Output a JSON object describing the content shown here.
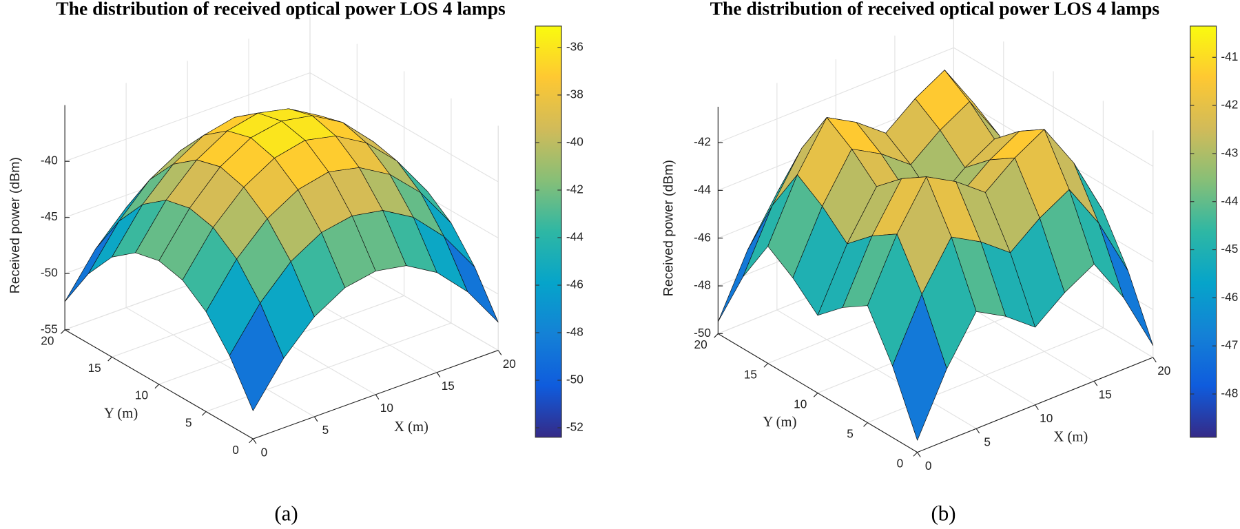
{
  "chart_data": [
    {
      "type": "surface",
      "title": "The distribution of received optical power LOS 4 lamps",
      "caption": "(a)",
      "xlabel": "X (m)",
      "ylabel": "Y (m)",
      "zlabel": "Received power (dBm)",
      "x": [
        0,
        2.5,
        5,
        7.5,
        10,
        12.5,
        15,
        17.5,
        20
      ],
      "y": [
        0,
        2.5,
        5,
        7.5,
        10,
        12.5,
        15,
        17.5,
        20
      ],
      "z": [
        [
          -52.5,
          -48.8,
          -46.1,
          -44.5,
          -44.0,
          -44.5,
          -46.1,
          -48.8,
          -52.5
        ],
        [
          -48.8,
          -45.1,
          -42.4,
          -40.8,
          -40.3,
          -40.8,
          -42.4,
          -45.1,
          -48.8
        ],
        [
          -46.1,
          -42.4,
          -39.8,
          -38.2,
          -37.6,
          -38.2,
          -39.8,
          -42.4,
          -46.1
        ],
        [
          -44.5,
          -40.8,
          -38.2,
          -36.6,
          -36.0,
          -36.6,
          -38.2,
          -40.8,
          -44.5
        ],
        [
          -44.0,
          -40.3,
          -37.6,
          -36.0,
          -35.5,
          -36.0,
          -37.6,
          -40.3,
          -44.0
        ],
        [
          -44.5,
          -40.8,
          -38.2,
          -36.6,
          -36.0,
          -36.6,
          -38.2,
          -40.8,
          -44.5
        ],
        [
          -46.1,
          -42.4,
          -39.8,
          -38.2,
          -37.6,
          -38.2,
          -39.8,
          -42.4,
          -46.1
        ],
        [
          -48.8,
          -45.1,
          -42.4,
          -40.8,
          -40.3,
          -40.8,
          -42.4,
          -45.1,
          -48.8
        ],
        [
          -52.5,
          -48.8,
          -46.1,
          -44.5,
          -44.0,
          -44.5,
          -46.1,
          -48.8,
          -52.5
        ]
      ],
      "xlim": [
        0,
        20
      ],
      "ylim": [
        0,
        20
      ],
      "zlim": [
        -55,
        -35
      ],
      "xticks": [
        0,
        5,
        10,
        15,
        20
      ],
      "yticks": [
        0,
        5,
        10,
        15,
        20
      ],
      "zticks": [
        -55,
        -50,
        -45,
        -40
      ],
      "grid": true,
      "colormap": [
        "#352a87",
        "#0f5cdd",
        "#1481d6",
        "#06a4ca",
        "#2eb7a4",
        "#87bf77",
        "#d1bb59",
        "#fec832",
        "#f9fb0e"
      ],
      "colorbar": {
        "clim": [
          -52.4,
          -35.1
        ],
        "ticks": [
          -52,
          -50,
          -48,
          -46,
          -44,
          -42,
          -40,
          -38,
          -36
        ]
      }
    },
    {
      "type": "surface",
      "title": "The distribution of received optical power LOS 4 lamps",
      "caption": "(b)",
      "xlabel": "X (m)",
      "ylabel": "Y (m)",
      "zlabel": "Received power (dBm)",
      "x": [
        0,
        2.5,
        5,
        7.5,
        10,
        12.5,
        15,
        17.5,
        20
      ],
      "y": [
        0,
        2.5,
        5,
        7.5,
        10,
        12.5,
        15,
        17.5,
        20
      ],
      "z": [
        [
          -49.5,
          -47.0,
          -45.1,
          -45.8,
          -46.75,
          -45.8,
          -45.1,
          -47.0,
          -49.5
        ],
        [
          -47.0,
          -44.5,
          -42.6,
          -43.3,
          -44.25,
          -43.3,
          -42.6,
          -44.5,
          -47.0
        ],
        [
          -45.1,
          -42.6,
          -40.7,
          -41.4,
          -42.35,
          -41.4,
          -40.7,
          -42.6,
          -45.1
        ],
        [
          -45.8,
          -43.3,
          -41.4,
          -42.1,
          -43.05,
          -42.1,
          -41.4,
          -43.3,
          -45.8
        ],
        [
          -46.75,
          -44.25,
          -42.35,
          -43.05,
          -44.0,
          -43.05,
          -42.35,
          -44.25,
          -46.75
        ],
        [
          -45.8,
          -43.3,
          -41.4,
          -42.1,
          -43.05,
          -42.1,
          -41.4,
          -43.3,
          -45.8
        ],
        [
          -45.1,
          -42.6,
          -40.7,
          -41.4,
          -42.35,
          -41.4,
          -40.7,
          -42.6,
          -45.1
        ],
        [
          -47.0,
          -44.5,
          -42.6,
          -43.3,
          -44.25,
          -43.3,
          -42.6,
          -44.5,
          -47.0
        ],
        [
          -49.5,
          -47.0,
          -45.1,
          -45.8,
          -46.75,
          -45.8,
          -45.1,
          -47.0,
          -49.5
        ]
      ],
      "xlim": [
        0,
        20
      ],
      "ylim": [
        0,
        20
      ],
      "zlim": [
        -50,
        -40.5
      ],
      "xticks": [
        0,
        5,
        10,
        15,
        20
      ],
      "yticks": [
        0,
        5,
        10,
        15,
        20
      ],
      "zticks": [
        -50,
        -48,
        -46,
        -44,
        -42
      ],
      "grid": true,
      "colormap": [
        "#352a87",
        "#0f5cdd",
        "#1481d6",
        "#06a4ca",
        "#2eb7a4",
        "#87bf77",
        "#d1bb59",
        "#fec832",
        "#f9fb0e"
      ],
      "colorbar": {
        "clim": [
          -48.9,
          -40.35
        ],
        "ticks": [
          -48,
          -47,
          -46,
          -45,
          -44,
          -43,
          -42,
          -41
        ]
      }
    }
  ]
}
